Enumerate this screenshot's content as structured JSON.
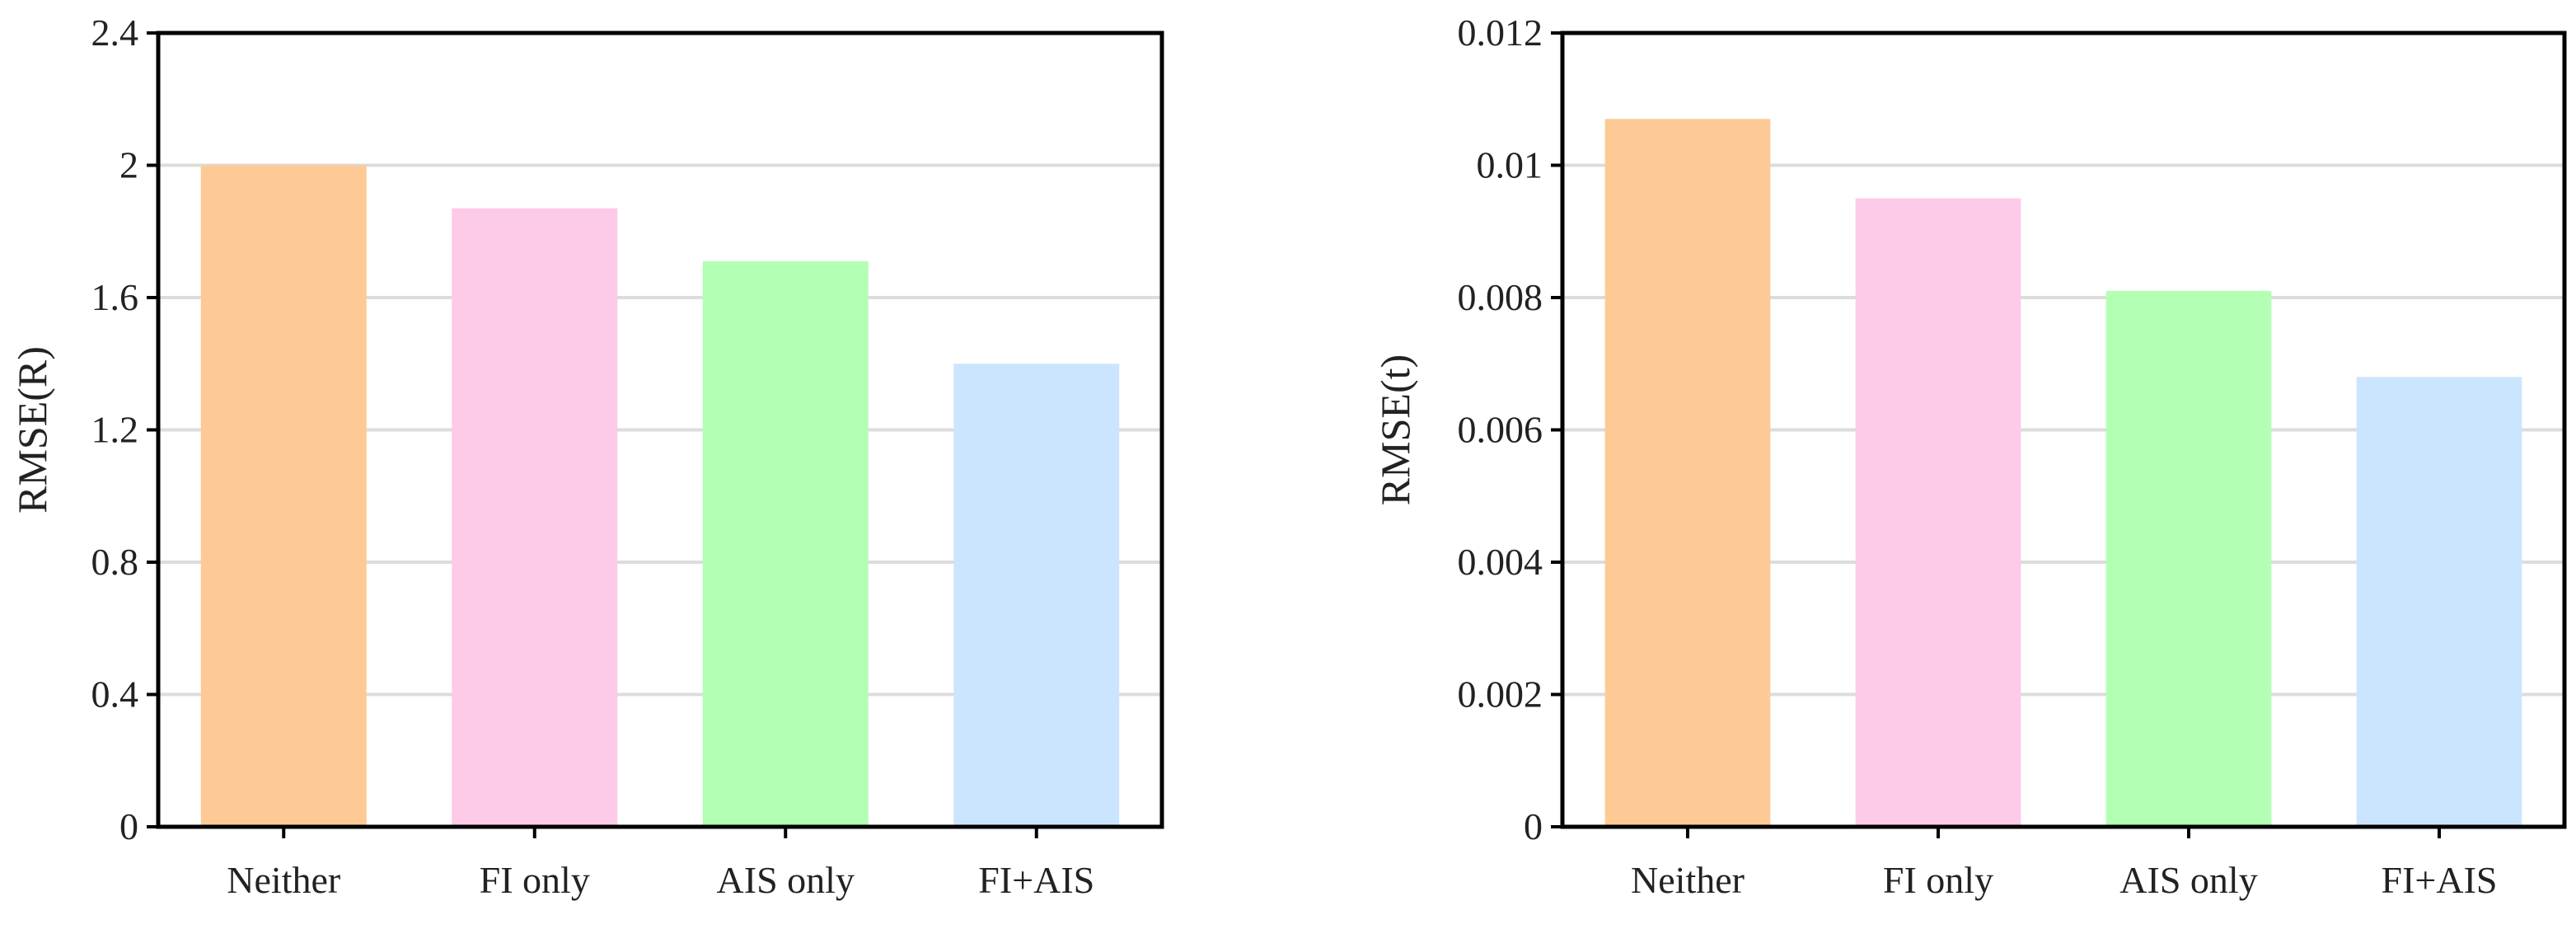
{
  "chart_data": [
    {
      "type": "bar",
      "categories": [
        "Neither",
        "FI only",
        "AIS only",
        "FI+AIS"
      ],
      "values": [
        2.0,
        1.87,
        1.71,
        1.4
      ],
      "ylabel": "RMSE(R)",
      "ylim": [
        0,
        2.4
      ],
      "yticks": [
        "0",
        "0.4",
        "0.8",
        "1.2",
        "1.6",
        "2",
        "2.4"
      ],
      "grid": true,
      "colors": [
        "#fdca96",
        "#fdcae8",
        "#b3ffb3",
        "#cce5ff"
      ]
    },
    {
      "type": "bar",
      "categories": [
        "Neither",
        "FI only",
        "AIS only",
        "FI+AIS"
      ],
      "values": [
        0.0107,
        0.0095,
        0.0081,
        0.0068
      ],
      "ylabel": "RMSE(t)",
      "ylim": [
        0,
        0.012
      ],
      "yticks": [
        "0",
        "0.002",
        "0.004",
        "0.006",
        "0.008",
        "0.01",
        "0.012"
      ],
      "grid": true,
      "colors": [
        "#fdca96",
        "#fdcae8",
        "#b3ffb3",
        "#cce5ff"
      ]
    }
  ]
}
